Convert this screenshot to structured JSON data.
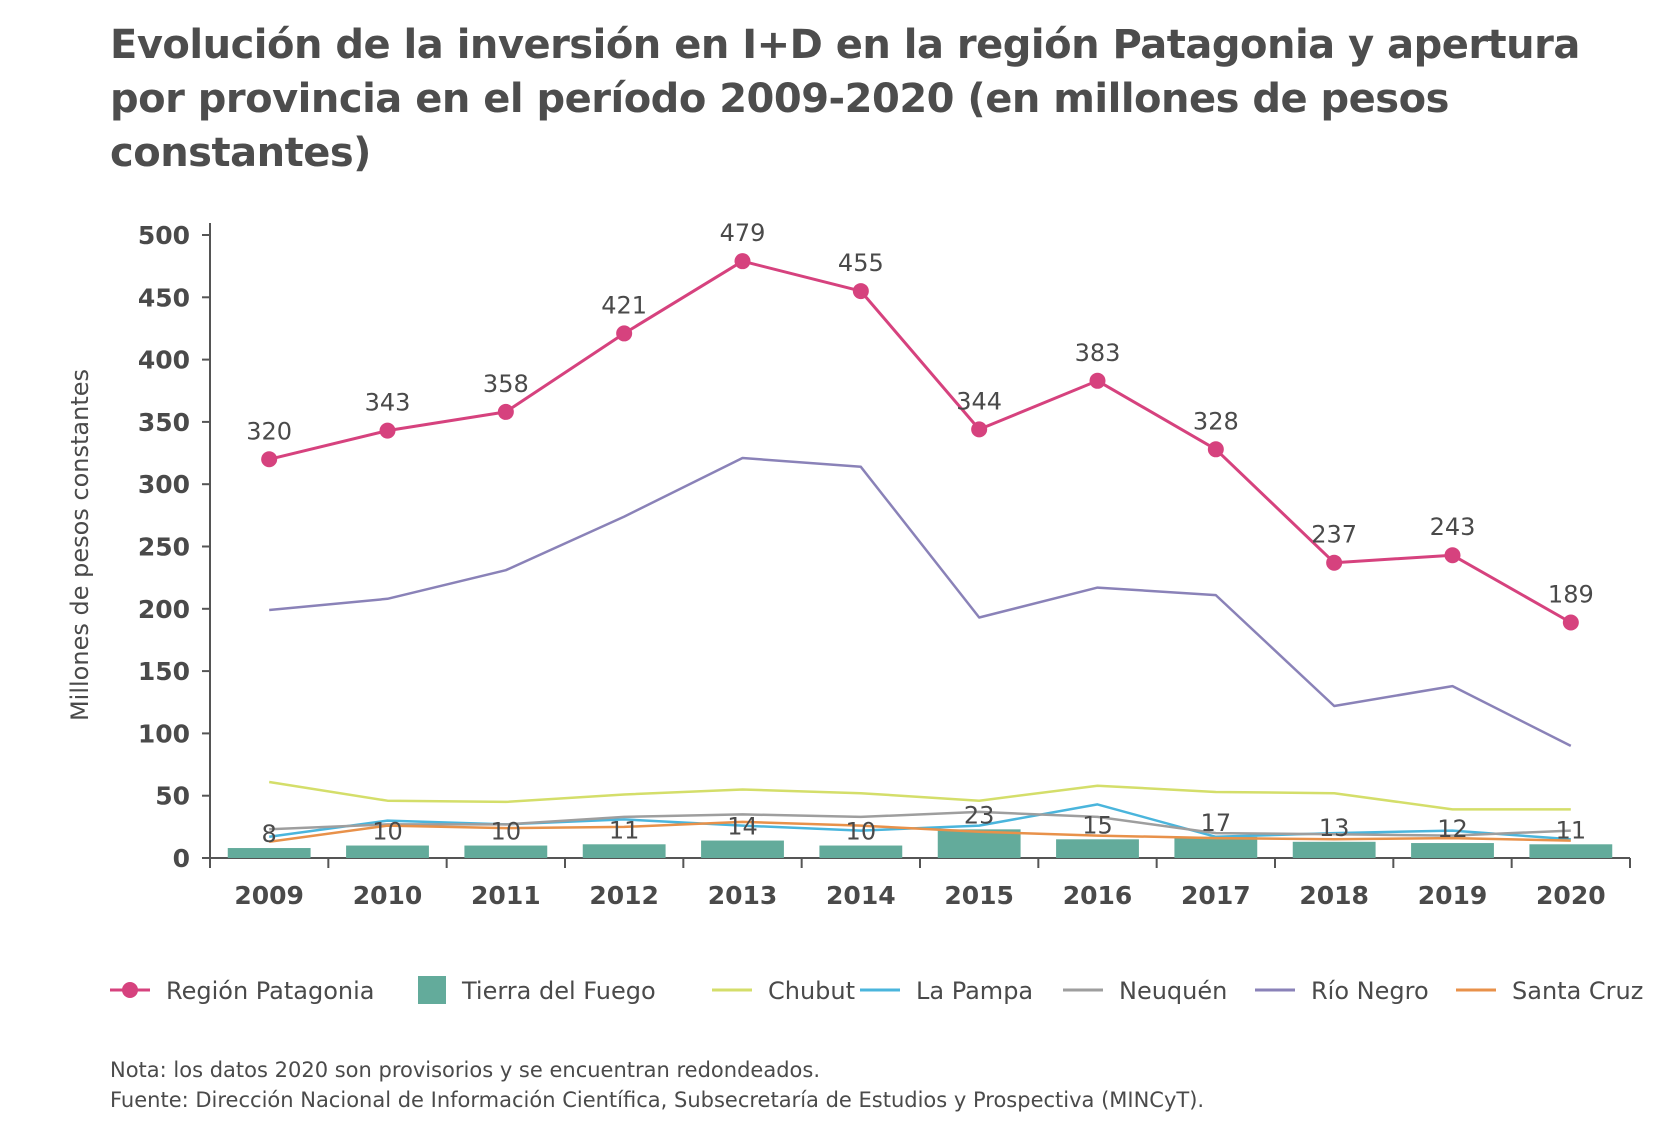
{
  "chart_data": {
    "type": "line",
    "title": "Evolución de la inversión en I+D en la región Patagonia y apertura por provincia en el período 2009-2020 (en millones de pesos constantes)",
    "xlabel": "",
    "ylabel": "Millones de pesos constantes",
    "ylim": [
      0,
      500
    ],
    "yticks": [
      0,
      50,
      100,
      150,
      200,
      250,
      300,
      350,
      400,
      450,
      500
    ],
    "grid": false,
    "legend_position": "bottom",
    "categories": [
      "2009",
      "2010",
      "2011",
      "2012",
      "2013",
      "2014",
      "2015",
      "2016",
      "2017",
      "2018",
      "2019",
      "2020"
    ],
    "series": [
      {
        "name": "Región Patagonia",
        "type": "line-markers",
        "color": "#d6427e",
        "values": [
          320,
          343,
          358,
          421,
          479,
          455,
          344,
          383,
          328,
          237,
          243,
          189
        ],
        "labels": [
          "320",
          "343",
          "358",
          "421",
          "479",
          "455",
          "344",
          "383",
          "328",
          "237",
          "243",
          "189"
        ]
      },
      {
        "name": "Tierra del Fuego",
        "type": "bar",
        "color": "#63ab9b",
        "values": [
          8,
          10,
          10,
          11,
          14,
          10,
          23,
          15,
          17,
          13,
          12,
          11
        ],
        "labels": [
          "8",
          "10",
          "10",
          "11",
          "14",
          "10",
          "23",
          "15",
          "17",
          "13",
          "12",
          "11"
        ]
      },
      {
        "name": "Chubut",
        "type": "line",
        "color": "#d4de6a",
        "values": [
          61,
          46,
          45,
          51,
          55,
          52,
          46,
          58,
          53,
          52,
          39,
          39
        ]
      },
      {
        "name": "La Pampa",
        "type": "line",
        "color": "#4ab5dc",
        "values": [
          17,
          30,
          27,
          31,
          26,
          22,
          26,
          43,
          17,
          20,
          22,
          15
        ]
      },
      {
        "name": "Neuquén",
        "type": "line",
        "color": "#9e9e9e",
        "values": [
          23,
          27,
          27,
          33,
          35,
          33,
          37,
          33,
          20,
          19,
          18,
          22
        ]
      },
      {
        "name": "Río Negro",
        "type": "line",
        "color": "#8a82b8",
        "values": [
          199,
          208,
          231,
          274,
          321,
          314,
          193,
          217,
          211,
          122,
          138,
          90
        ]
      },
      {
        "name": "Santa Cruz",
        "type": "line",
        "color": "#e8914a",
        "values": [
          13,
          26,
          24,
          25,
          29,
          26,
          21,
          18,
          16,
          15,
          16,
          14
        ]
      }
    ],
    "notes": [
      "Nota: los datos 2020 son provisorios y se encuentran redondeados.",
      "Fuente: Dirección Nacional de Información Científica, Subsecretaría de Estudios y Prospectiva (MINCyT)."
    ]
  }
}
